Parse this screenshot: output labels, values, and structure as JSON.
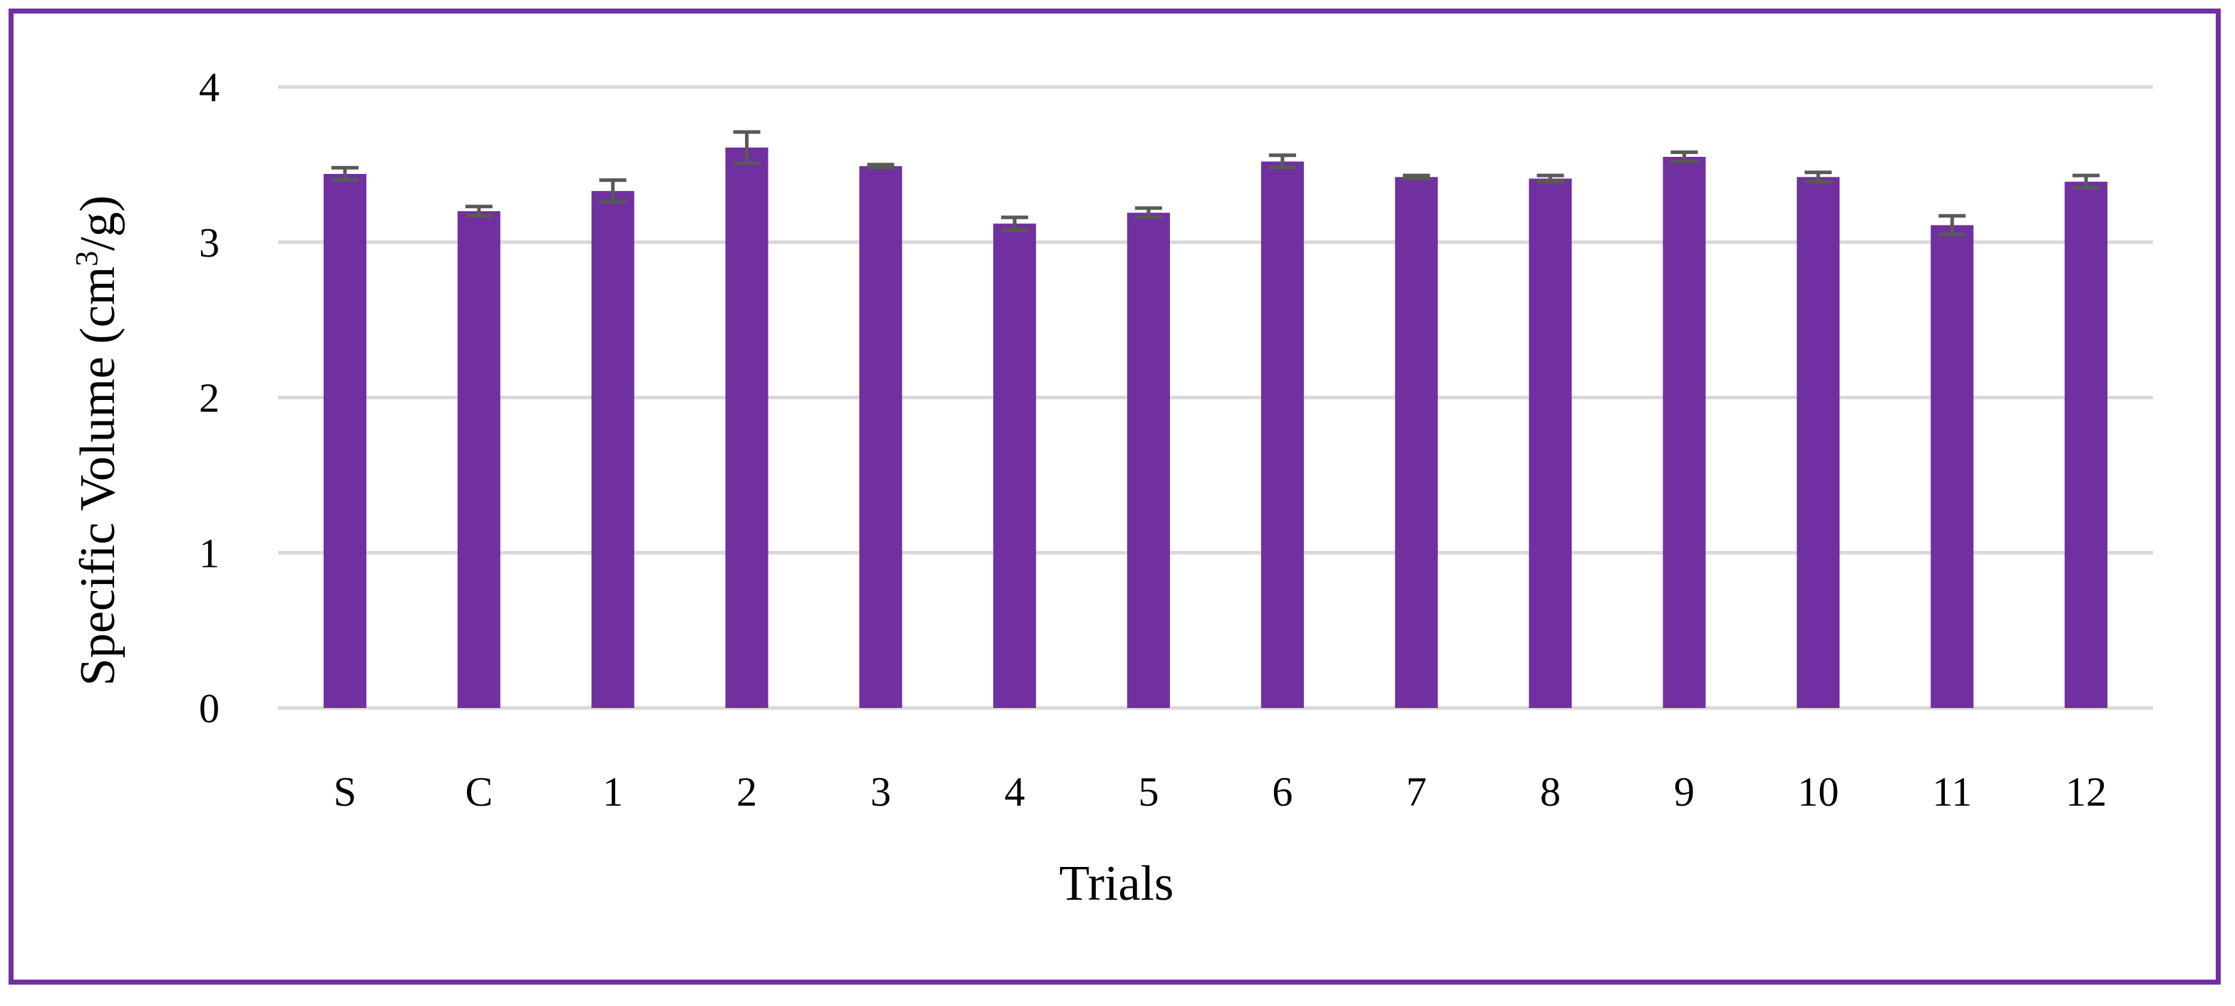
{
  "chart_data": {
    "type": "bar",
    "categories": [
      "S",
      "C",
      "1",
      "2",
      "3",
      "4",
      "5",
      "6",
      "7",
      "8",
      "9",
      "10",
      "11",
      "12"
    ],
    "series": [
      {
        "values": [
          3.44,
          3.2,
          3.33,
          3.61,
          3.49,
          3.12,
          3.19,
          3.52,
          3.42,
          3.41,
          3.55,
          3.42,
          3.11,
          3.39
        ],
        "error": [
          0.04,
          0.03,
          0.07,
          0.1,
          0.01,
          0.04,
          0.03,
          0.04,
          0.01,
          0.02,
          0.03,
          0.03,
          0.06,
          0.04
        ]
      }
    ],
    "xlabel": "Trials",
    "ylabel": {
      "main": "Specific Volume (cm",
      "sup": "3",
      "tail": "/g)"
    },
    "ylim": [
      0,
      4
    ],
    "yticks": [
      0,
      1,
      2,
      3,
      4
    ],
    "grid": true,
    "legend": "none",
    "colors": {
      "bar": "#7030a0",
      "frame": "#7030a0",
      "grid": "#d9d9d9",
      "error_bar": "#595959"
    }
  }
}
